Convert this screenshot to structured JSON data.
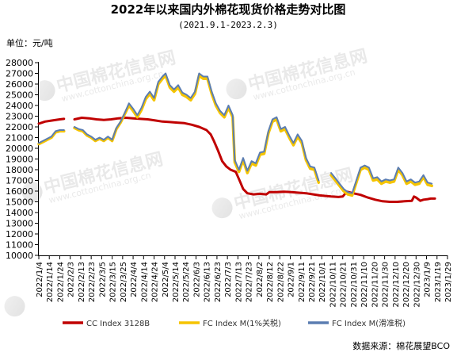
{
  "chart_data": {
    "type": "line",
    "title": "2022年以来国内外棉花现货价格走势对比图",
    "subtitle": "(2021.9.1-2023.2.3)",
    "ylabel": "单位：元/吨",
    "ylim": [
      10000,
      28000
    ],
    "yticks": [
      10000,
      11000,
      12000,
      13000,
      14000,
      15000,
      16000,
      17000,
      18000,
      19000,
      20000,
      21000,
      22000,
      23000,
      24000,
      25000,
      26000,
      27000,
      28000
    ],
    "xlim": [
      "2022-01-04",
      "2023-01-29"
    ],
    "xticks": [
      "2022/1/4",
      "2022/1/14",
      "2022/1/24",
      "2022/2/3",
      "2022/2/13",
      "2022/2/23",
      "2022/3/5",
      "2022/3/15",
      "2022/3/25",
      "2022/4/4",
      "2022/4/14",
      "2022/4/24",
      "2022/5/4",
      "2022/5/14",
      "2022/5/24",
      "2022/6/3",
      "2022/6/13",
      "2022/6/23",
      "2022/7/3",
      "2022/7/13",
      "2022/7/23",
      "2022/8/2",
      "2022/8/12",
      "2022/8/22",
      "2022/9/1",
      "2022/9/11",
      "2022/9/21",
      "2022/10/1",
      "2022/10/11",
      "2022/10/21",
      "2022/10/31",
      "2022/11/10",
      "2022/11/20",
      "2022/11/30",
      "2022/12/10",
      "2022/12/20",
      "2022/12/30",
      "2023/1/9",
      "2023/1/19",
      "2023/1/29"
    ],
    "grid": false,
    "legend_position": "bottom",
    "series": [
      {
        "name": "CC Index 3128B",
        "color": "#c00000",
        "points": [
          [
            "2022-01-04",
            22300
          ],
          [
            "2022-01-10",
            22500
          ],
          [
            "2022-01-17",
            22600
          ],
          [
            "2022-01-24",
            22700
          ],
          [
            "2022-01-28",
            22750
          ],
          [
            null,
            null
          ],
          [
            "2022-02-07",
            22700
          ],
          [
            "2022-02-14",
            22850
          ],
          [
            "2022-02-21",
            22800
          ],
          [
            "2022-02-28",
            22700
          ],
          [
            "2022-03-07",
            22650
          ],
          [
            "2022-03-14",
            22700
          ],
          [
            "2022-03-21",
            22800
          ],
          [
            "2022-03-28",
            22850
          ],
          [
            "2022-04-04",
            22800
          ],
          [
            "2022-04-11",
            22750
          ],
          [
            "2022-04-18",
            22700
          ],
          [
            "2022-04-25",
            22600
          ],
          [
            "2022-05-02",
            22500
          ],
          [
            "2022-05-09",
            22450
          ],
          [
            "2022-05-16",
            22400
          ],
          [
            "2022-05-23",
            22350
          ],
          [
            "2022-05-30",
            22200
          ],
          [
            "2022-06-06",
            22000
          ],
          [
            "2022-06-13",
            21700
          ],
          [
            "2022-06-17",
            21300
          ],
          [
            "2022-06-20",
            20700
          ],
          [
            "2022-06-24",
            19800
          ],
          [
            "2022-06-28",
            18800
          ],
          [
            "2022-07-02",
            18300
          ],
          [
            "2022-07-06",
            18000
          ],
          [
            "2022-07-11",
            17800
          ],
          [
            "2022-07-15",
            16900
          ],
          [
            "2022-07-18",
            16200
          ],
          [
            "2022-07-22",
            15800
          ],
          [
            "2022-07-28",
            15700
          ],
          [
            "2022-08-03",
            15750
          ],
          [
            "2022-08-09",
            15700
          ],
          [
            "2022-08-12",
            15900
          ],
          [
            "2022-08-19",
            15900
          ],
          [
            "2022-08-26",
            15950
          ],
          [
            "2022-09-02",
            15900
          ],
          [
            "2022-09-09",
            15850
          ],
          [
            "2022-09-16",
            15800
          ],
          [
            "2022-09-23",
            15700
          ],
          [
            "2022-09-29",
            15600
          ],
          [
            "2022-10-10",
            15500
          ],
          [
            "2022-10-17",
            15450
          ],
          [
            "2022-10-21",
            15500
          ],
          [
            "2022-10-25",
            15950
          ],
          [
            "2022-10-31",
            15800
          ],
          [
            "2022-11-07",
            15650
          ],
          [
            "2022-11-14",
            15400
          ],
          [
            "2022-11-21",
            15200
          ],
          [
            "2022-11-28",
            15050
          ],
          [
            "2022-12-05",
            15000
          ],
          [
            "2022-12-12",
            15000
          ],
          [
            "2022-12-19",
            15050
          ],
          [
            "2022-12-26",
            15100
          ],
          [
            "2022-12-28",
            15500
          ],
          [
            "2022-12-30",
            15400
          ],
          [
            "2023-01-03",
            15100
          ],
          [
            "2023-01-06",
            15200
          ],
          [
            "2023-01-10",
            15250
          ],
          [
            "2023-01-13",
            15300
          ],
          [
            "2023-01-17",
            15300
          ]
        ]
      },
      {
        "name": "FC Index M(1%关税)",
        "color": "#f5c400",
        "points": [
          [
            "2022-01-04",
            20400
          ],
          [
            "2022-01-08",
            20600
          ],
          [
            "2022-01-12",
            20800
          ],
          [
            "2022-01-16",
            21000
          ],
          [
            "2022-01-20",
            21500
          ],
          [
            "2022-01-24",
            21600
          ],
          [
            "2022-01-28",
            21600
          ],
          [
            null,
            null
          ],
          [
            "2022-02-07",
            21900
          ],
          [
            "2022-02-11",
            21700
          ],
          [
            "2022-02-15",
            21600
          ],
          [
            "2022-02-19",
            21200
          ],
          [
            "2022-02-23",
            21000
          ],
          [
            "2022-02-27",
            20700
          ],
          [
            "2022-03-03",
            20900
          ],
          [
            "2022-03-07",
            20700
          ],
          [
            "2022-03-11",
            21000
          ],
          [
            "2022-03-15",
            20700
          ],
          [
            "2022-03-19",
            21800
          ],
          [
            "2022-03-23",
            22400
          ],
          [
            "2022-03-27",
            23200
          ],
          [
            "2022-03-31",
            24000
          ],
          [
            "2022-04-04",
            23500
          ],
          [
            "2022-04-08",
            22900
          ],
          [
            "2022-04-12",
            23600
          ],
          [
            "2022-04-16",
            24600
          ],
          [
            "2022-04-20",
            25100
          ],
          [
            "2022-04-24",
            24500
          ],
          [
            "2022-04-28",
            26000
          ],
          [
            "2022-05-02",
            26500
          ],
          [
            "2022-05-05",
            26800
          ],
          [
            "2022-05-09",
            25700
          ],
          [
            "2022-05-13",
            25300
          ],
          [
            "2022-05-17",
            25700
          ],
          [
            "2022-05-21",
            25000
          ],
          [
            "2022-05-25",
            24800
          ],
          [
            "2022-05-29",
            24500
          ],
          [
            "2022-06-02",
            25100
          ],
          [
            "2022-06-06",
            26800
          ],
          [
            "2022-06-10",
            26500
          ],
          [
            "2022-06-14",
            26500
          ],
          [
            "2022-06-18",
            25100
          ],
          [
            "2022-06-22",
            24000
          ],
          [
            "2022-06-26",
            23300
          ],
          [
            "2022-06-30",
            22900
          ],
          [
            "2022-07-04",
            23800
          ],
          [
            "2022-07-08",
            22900
          ],
          [
            "2022-07-10",
            18700
          ],
          [
            "2022-07-14",
            17800
          ],
          [
            "2022-07-18",
            18900
          ],
          [
            "2022-07-22",
            17700
          ],
          [
            "2022-07-26",
            18600
          ],
          [
            "2022-07-30",
            18400
          ],
          [
            "2022-08-03",
            19400
          ],
          [
            "2022-08-07",
            19500
          ],
          [
            "2022-08-11",
            21400
          ],
          [
            "2022-08-15",
            22500
          ],
          [
            "2022-08-19",
            22700
          ],
          [
            "2022-08-23",
            21600
          ],
          [
            "2022-08-27",
            21800
          ],
          [
            "2022-08-31",
            21000
          ],
          [
            "2022-09-04",
            20300
          ],
          [
            "2022-09-08",
            21100
          ],
          [
            "2022-09-12",
            20500
          ],
          [
            "2022-09-16",
            18900
          ],
          [
            "2022-09-20",
            18100
          ],
          [
            "2022-09-24",
            18000
          ],
          [
            "2022-09-28",
            16800
          ],
          [
            null,
            null
          ],
          [
            "2022-10-10",
            17500
          ],
          [
            "2022-10-14",
            17000
          ],
          [
            "2022-10-18",
            16500
          ],
          [
            "2022-10-22",
            16000
          ],
          [
            "2022-10-26",
            15700
          ],
          [
            "2022-10-30",
            15600
          ],
          [
            "2022-11-03",
            16800
          ],
          [
            "2022-11-07",
            18000
          ],
          [
            "2022-11-11",
            18200
          ],
          [
            "2022-11-15",
            18000
          ],
          [
            "2022-11-19",
            17000
          ],
          [
            "2022-11-23",
            17100
          ],
          [
            "2022-11-27",
            16700
          ],
          [
            "2022-12-01",
            16900
          ],
          [
            "2022-12-05",
            16800
          ],
          [
            "2022-12-09",
            16900
          ],
          [
            "2022-12-13",
            18000
          ],
          [
            "2022-12-17",
            17500
          ],
          [
            "2022-12-21",
            16700
          ],
          [
            "2022-12-25",
            16900
          ],
          [
            "2022-12-29",
            16600
          ],
          [
            "2023-01-02",
            16700
          ],
          [
            "2023-01-06",
            17300
          ],
          [
            "2023-01-10",
            16600
          ],
          [
            "2023-01-14",
            16500
          ]
        ]
      },
      {
        "name": "FC Index M(滑准税)",
        "color": "#5b7db1",
        "points": [
          [
            "2022-01-04",
            20500
          ],
          [
            "2022-01-08",
            20700
          ],
          [
            "2022-01-12",
            20900
          ],
          [
            "2022-01-16",
            21100
          ],
          [
            "2022-01-20",
            21600
          ],
          [
            "2022-01-24",
            21700
          ],
          [
            "2022-01-28",
            21700
          ],
          [
            null,
            null
          ],
          [
            "2022-02-07",
            22000
          ],
          [
            "2022-02-11",
            21800
          ],
          [
            "2022-02-15",
            21700
          ],
          [
            "2022-02-19",
            21300
          ],
          [
            "2022-02-23",
            21100
          ],
          [
            "2022-02-27",
            20800
          ],
          [
            "2022-03-03",
            21000
          ],
          [
            "2022-03-07",
            20800
          ],
          [
            "2022-03-11",
            21100
          ],
          [
            "2022-03-15",
            20800
          ],
          [
            "2022-03-19",
            21900
          ],
          [
            "2022-03-23",
            22500
          ],
          [
            "2022-03-27",
            23300
          ],
          [
            "2022-03-31",
            24200
          ],
          [
            "2022-04-04",
            23700
          ],
          [
            "2022-04-08",
            23100
          ],
          [
            "2022-04-12",
            23800
          ],
          [
            "2022-04-16",
            24800
          ],
          [
            "2022-04-20",
            25300
          ],
          [
            "2022-04-24",
            24700
          ],
          [
            "2022-04-28",
            26200
          ],
          [
            "2022-05-02",
            26700
          ],
          [
            "2022-05-05",
            27000
          ],
          [
            "2022-05-09",
            25900
          ],
          [
            "2022-05-13",
            25500
          ],
          [
            "2022-05-17",
            25900
          ],
          [
            "2022-05-21",
            25200
          ],
          [
            "2022-05-25",
            25000
          ],
          [
            "2022-05-29",
            24700
          ],
          [
            "2022-06-02",
            25300
          ],
          [
            "2022-06-06",
            27000
          ],
          [
            "2022-06-10",
            26700
          ],
          [
            "2022-06-14",
            26700
          ],
          [
            "2022-06-18",
            25300
          ],
          [
            "2022-06-22",
            24200
          ],
          [
            "2022-06-26",
            23500
          ],
          [
            "2022-06-30",
            23100
          ],
          [
            "2022-07-04",
            24000
          ],
          [
            "2022-07-08",
            23100
          ],
          [
            "2022-07-10",
            18900
          ],
          [
            "2022-07-14",
            18000
          ],
          [
            "2022-07-18",
            19100
          ],
          [
            "2022-07-22",
            17900
          ],
          [
            "2022-07-26",
            18800
          ],
          [
            "2022-07-30",
            18600
          ],
          [
            "2022-08-03",
            19600
          ],
          [
            "2022-08-07",
            19700
          ],
          [
            "2022-08-11",
            21600
          ],
          [
            "2022-08-15",
            22700
          ],
          [
            "2022-08-19",
            22900
          ],
          [
            "2022-08-23",
            21800
          ],
          [
            "2022-08-27",
            22000
          ],
          [
            "2022-08-31",
            21200
          ],
          [
            "2022-09-04",
            20500
          ],
          [
            "2022-09-08",
            21300
          ],
          [
            "2022-09-12",
            20700
          ],
          [
            "2022-09-16",
            19100
          ],
          [
            "2022-09-20",
            18300
          ],
          [
            "2022-09-24",
            18200
          ],
          [
            "2022-09-28",
            17000
          ],
          [
            null,
            null
          ],
          [
            "2022-10-10",
            17700
          ],
          [
            "2022-10-14",
            17200
          ],
          [
            "2022-10-18",
            16700
          ],
          [
            "2022-10-22",
            16200
          ],
          [
            "2022-10-26",
            15900
          ],
          [
            "2022-10-30",
            15800
          ],
          [
            "2022-11-03",
            17000
          ],
          [
            "2022-11-07",
            18200
          ],
          [
            "2022-11-11",
            18400
          ],
          [
            "2022-11-15",
            18200
          ],
          [
            "2022-11-19",
            17200
          ],
          [
            "2022-11-23",
            17300
          ],
          [
            "2022-11-27",
            16900
          ],
          [
            "2022-12-01",
            17100
          ],
          [
            "2022-12-05",
            17000
          ],
          [
            "2022-12-09",
            17100
          ],
          [
            "2022-12-13",
            18200
          ],
          [
            "2022-12-17",
            17700
          ],
          [
            "2022-12-21",
            16900
          ],
          [
            "2022-12-25",
            17100
          ],
          [
            "2022-12-29",
            16800
          ],
          [
            "2023-01-02",
            16900
          ],
          [
            "2023-01-06",
            17500
          ],
          [
            "2023-01-10",
            16800
          ],
          [
            "2023-01-14",
            16700
          ]
        ]
      }
    ],
    "source": "数据来源：棉花展望BCO",
    "watermark_cn": "中国棉花信息网",
    "watermark_en": "www.cottonchina.org.cn"
  }
}
